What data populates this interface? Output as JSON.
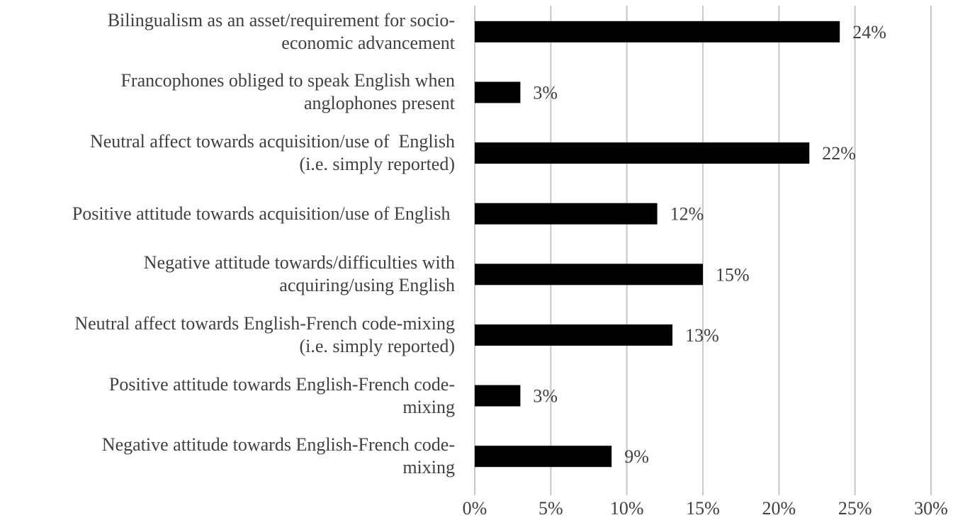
{
  "chart_data": {
    "type": "barh",
    "categories": [
      "Bilingualism as an asset/requirement for socio-\neconomic advancement",
      "Francophones obliged to speak English when\nanglophones present",
      "Neutral affect towards acquisition/use of  English\n(i.e. simply reported)",
      "Positive attitude towards acquisition/use of English ",
      "Negative attitude towards/difficulties with\nacquiring/using English",
      "Neutral affect towards English-French code-mixing\n(i.e. simply reported)",
      "Positive attitude towards English-French code-\nmixing",
      "Negative attitude towards English-French code-\nmixing"
    ],
    "values": [
      24,
      3,
      22,
      12,
      15,
      13,
      3,
      9
    ],
    "value_labels": [
      "24%",
      "3%",
      "22%",
      "12%",
      "15%",
      "13%",
      "3%",
      "9%"
    ],
    "color": "#000000",
    "xlim": [
      0,
      30
    ],
    "xticks": [
      {
        "value": 0,
        "label": "0%"
      },
      {
        "value": 5,
        "label": "5%"
      },
      {
        "value": 10,
        "label": "10%"
      },
      {
        "value": 15,
        "label": "15%"
      },
      {
        "value": 20,
        "label": "20%"
      },
      {
        "value": 25,
        "label": "25%"
      },
      {
        "value": 30,
        "label": "30%"
      }
    ],
    "grid": true
  }
}
